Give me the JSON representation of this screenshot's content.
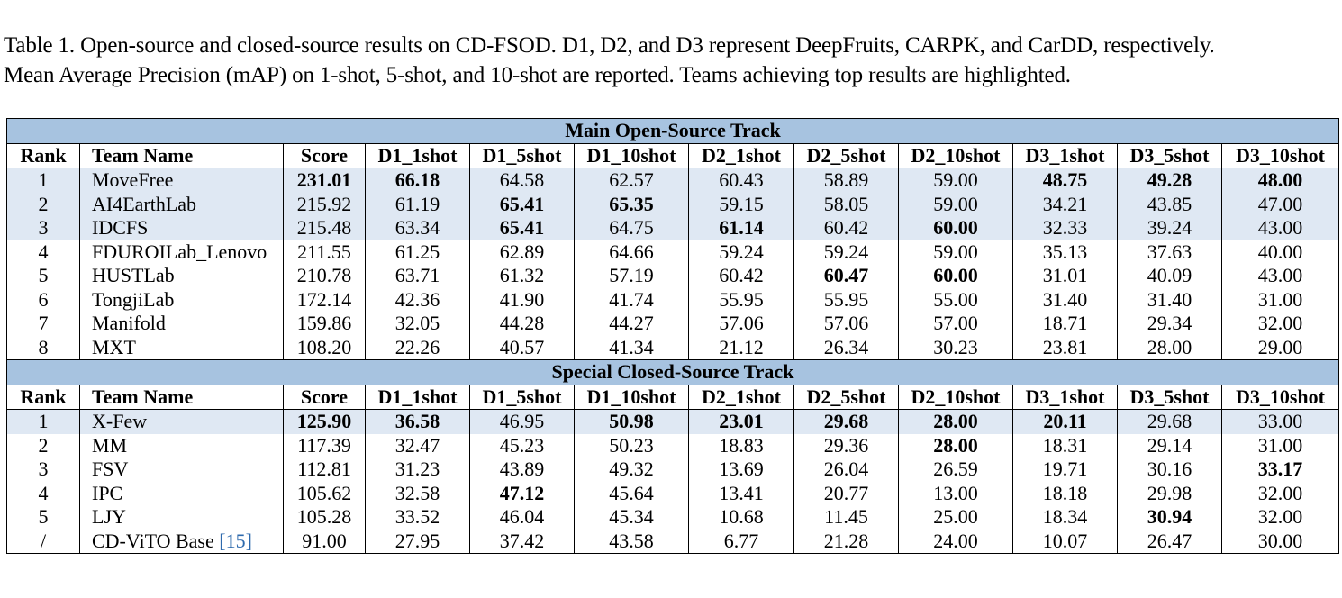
{
  "caption": {
    "line1": "Table 1.  Open-source and closed-source results on CD-FSOD. D1, D2, and D3 represent DeepFruits, CARPK, and CarDD, respectively.",
    "line2": "Mean Average Precision (mAP) on 1-shot, 5-shot, and 10-shot are reported. Teams achieving top results are highlighted."
  },
  "columns": [
    "Rank",
    "Team Name",
    "Score",
    "D1_1shot",
    "D1_5shot",
    "D1_10shot",
    "D2_1shot",
    "D2_5shot",
    "D2_10shot",
    "D3_1shot",
    "D3_5shot",
    "D3_10shot"
  ],
  "colors": {
    "track_header": "#a7c3e0",
    "highlight": "#dfe8f3",
    "citation": "#2e6aad"
  },
  "open_track": {
    "title": "Main Open-Source Track",
    "rows": [
      {
        "highlight": true,
        "cells": [
          "1",
          "MoveFree",
          "231.01",
          "66.18",
          "64.58",
          "62.57",
          "60.43",
          "58.89",
          "59.00",
          "48.75",
          "49.28",
          "48.00"
        ],
        "bold": [
          2,
          3,
          9,
          10,
          11
        ]
      },
      {
        "highlight": true,
        "cells": [
          "2",
          "AI4EarthLab",
          "215.92",
          "61.19",
          "65.41",
          "65.35",
          "59.15",
          "58.05",
          "59.00",
          "34.21",
          "43.85",
          "47.00"
        ],
        "bold": [
          4,
          5
        ]
      },
      {
        "highlight": true,
        "cells": [
          "3",
          "IDCFS",
          "215.48",
          "63.34",
          "65.41",
          "64.75",
          "61.14",
          "60.42",
          "60.00",
          "32.33",
          "39.24",
          "43.00"
        ],
        "bold": [
          4,
          6,
          8
        ]
      },
      {
        "highlight": false,
        "cells": [
          "4",
          "FDUROILab_Lenovo",
          "211.55",
          "61.25",
          "62.89",
          "64.66",
          "59.24",
          "59.24",
          "59.00",
          "35.13",
          "37.63",
          "40.00"
        ],
        "bold": []
      },
      {
        "highlight": false,
        "cells": [
          "5",
          "HUSTLab",
          "210.78",
          "63.71",
          "61.32",
          "57.19",
          "60.42",
          "60.47",
          "60.00",
          "31.01",
          "40.09",
          "43.00"
        ],
        "bold": [
          7,
          8
        ]
      },
      {
        "highlight": false,
        "cells": [
          "6",
          "TongjiLab",
          "172.14",
          "42.36",
          "41.90",
          "41.74",
          "55.95",
          "55.95",
          "55.00",
          "31.40",
          "31.40",
          "31.00"
        ],
        "bold": []
      },
      {
        "highlight": false,
        "cells": [
          "7",
          "Manifold",
          "159.86",
          "32.05",
          "44.28",
          "44.27",
          "57.06",
          "57.06",
          "57.00",
          "18.71",
          "29.34",
          "32.00"
        ],
        "bold": []
      },
      {
        "highlight": false,
        "cells": [
          "8",
          "MXT",
          "108.20",
          "22.26",
          "40.57",
          "41.34",
          "21.12",
          "26.34",
          "30.23",
          "23.81",
          "28.00",
          "29.00"
        ],
        "bold": []
      }
    ]
  },
  "closed_track": {
    "title": "Special Closed-Source Track",
    "rows": [
      {
        "highlight": true,
        "cells": [
          "1",
          "X-Few",
          "125.90",
          "36.58",
          "46.95",
          "50.98",
          "23.01",
          "29.68",
          "28.00",
          "20.11",
          "29.68",
          "33.00"
        ],
        "bold": [
          2,
          3,
          5,
          6,
          7,
          8,
          9
        ]
      },
      {
        "highlight": false,
        "cells": [
          "2",
          "MM",
          "117.39",
          "32.47",
          "45.23",
          "50.23",
          "18.83",
          "29.36",
          "28.00",
          "18.31",
          "29.14",
          "31.00"
        ],
        "bold": [
          8
        ]
      },
      {
        "highlight": false,
        "cells": [
          "3",
          "FSV",
          "112.81",
          "31.23",
          "43.89",
          "49.32",
          "13.69",
          "26.04",
          "26.59",
          "19.71",
          "30.16",
          "33.17"
        ],
        "bold": [
          11
        ]
      },
      {
        "highlight": false,
        "cells": [
          "4",
          "IPC",
          "105.62",
          "32.58",
          "47.12",
          "45.64",
          "13.41",
          "20.77",
          "13.00",
          "18.18",
          "29.98",
          "32.00"
        ],
        "bold": [
          4
        ]
      },
      {
        "highlight": false,
        "cells": [
          "5",
          "LJY",
          "105.28",
          "33.52",
          "46.04",
          "45.34",
          "10.68",
          "11.45",
          "25.00",
          "18.34",
          "30.94",
          "32.00"
        ],
        "bold": [
          10
        ]
      },
      {
        "highlight": false,
        "cells": [
          "/",
          "CD-ViTO Base",
          "91.00",
          "27.95",
          "37.42",
          "43.58",
          "6.77",
          "21.28",
          "24.00",
          "10.07",
          "26.47",
          "30.00"
        ],
        "bold": [],
        "citation": "[15]"
      }
    ]
  }
}
